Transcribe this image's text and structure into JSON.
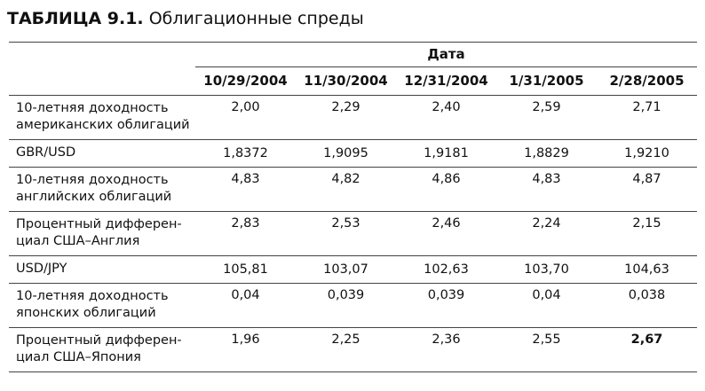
{
  "header": {
    "label": "ТАБЛИЦА 9.1.",
    "title": "Облигационные спреды"
  },
  "table": {
    "group_header": "Дата",
    "columns": [
      "10/29/2004",
      "11/30/2004",
      "12/31/2004",
      "1/31/2005",
      "2/28/2005"
    ],
    "rows": [
      {
        "label": [
          "10-летняя доходность",
          "американских облигаций"
        ],
        "values": [
          "2,00",
          "2,29",
          "2,40",
          "2,59",
          "2,71"
        ]
      },
      {
        "label": [
          "GBR/USD"
        ],
        "values": [
          "1,8372",
          "1,9095",
          "1,9181",
          "1,8829",
          "1,9210"
        ]
      },
      {
        "label": [
          "10-летняя доходность",
          "английских облигаций"
        ],
        "values": [
          "4,83",
          "4,82",
          "4,86",
          "4,83",
          "4,87"
        ]
      },
      {
        "label": [
          "Процентный дифферен-",
          "циал США–Англия"
        ],
        "values": [
          "2,83",
          "2,53",
          "2,46",
          "2,24",
          "2,15"
        ]
      },
      {
        "label": [
          "USD/JPY"
        ],
        "values": [
          "105,81",
          "103,07",
          "102,63",
          "103,70",
          "104,63"
        ]
      },
      {
        "label": [
          "10-летняя доходность",
          "японских облигаций"
        ],
        "values": [
          "0,04",
          "0,039",
          "0,039",
          "0,04",
          "0,038"
        ]
      },
      {
        "label": [
          "Процентный дифферен-",
          "циал США–Япония"
        ],
        "values": [
          "1,96",
          "2,25",
          "2,36",
          "2,55",
          "2,67"
        ]
      }
    ]
  }
}
